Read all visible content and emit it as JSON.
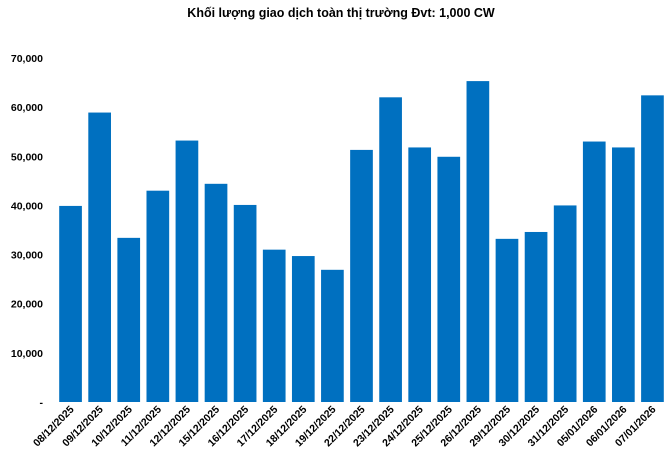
{
  "chart_data": {
    "type": "bar",
    "title": "Khối lượng giao dịch toàn thị trường Đvt: 1,000 CW",
    "xlabel": "",
    "ylabel": "",
    "ylim": [
      0,
      70000
    ],
    "yticks": [
      0,
      10000,
      20000,
      30000,
      40000,
      50000,
      60000,
      70000
    ],
    "ytick_labels": [
      "-",
      "10,000",
      "20,000",
      "30,000",
      "40,000",
      "50,000",
      "60,000",
      "70,000"
    ],
    "grid": false,
    "legend": "none",
    "bar_color": "#0070C0",
    "categories": [
      "08/12/2025",
      "09/12/2025",
      "10/12/2025",
      "11/12/2025",
      "12/12/2025",
      "15/12/2025",
      "16/12/2025",
      "17/12/2025",
      "18/12/2025",
      "19/12/2025",
      "22/12/2025",
      "23/12/2025",
      "24/12/2025",
      "25/12/2025",
      "26/12/2025",
      "29/12/2025",
      "30/12/2025",
      "31/12/2025",
      "05/01/2026",
      "06/01/2026",
      "07/01/2026"
    ],
    "values": [
      39900,
      58900,
      33400,
      43000,
      53200,
      44400,
      40100,
      31000,
      29700,
      26900,
      51300,
      62000,
      51800,
      49900,
      65300,
      33200,
      34600,
      40000,
      53000,
      51800,
      62400
    ]
  }
}
